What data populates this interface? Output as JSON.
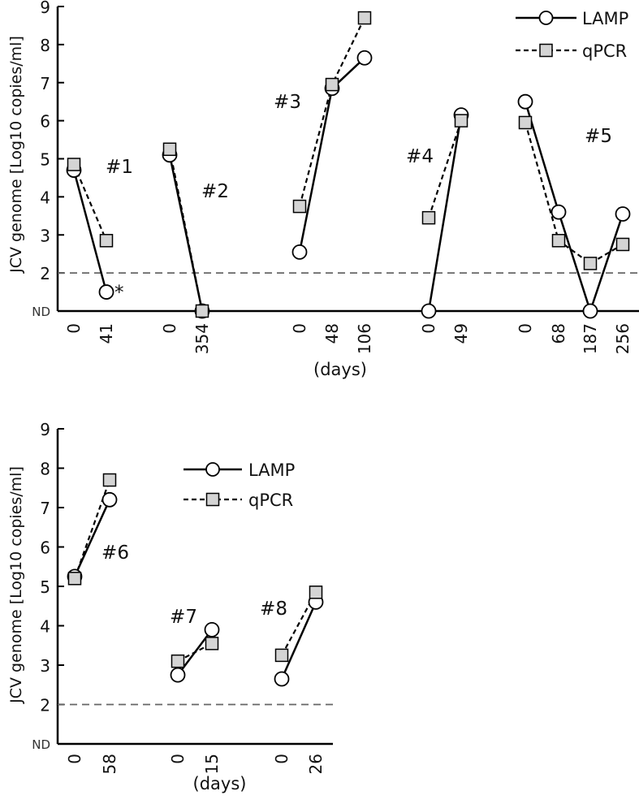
{
  "chart_data": [
    {
      "type": "line",
      "ylabel": "JCV genome [Log10 copies/ml]",
      "xlabel": "(days)",
      "yticks": [
        "ND",
        "2",
        "3",
        "4",
        "5",
        "6",
        "7",
        "8",
        "9"
      ],
      "ylim": [
        "ND",
        9
      ],
      "threshold": 2,
      "legend": {
        "placement": "top-right",
        "entries": [
          "LAMP",
          "qPCR"
        ]
      },
      "groups": [
        {
          "label": "#1",
          "days": [
            "0",
            "41"
          ],
          "LAMP": [
            4.7,
            1.5
          ],
          "qPCR": [
            4.85,
            2.85
          ],
          "annotations": [
            {
              "series": "LAMP",
              "index": 1,
              "text": "*"
            }
          ]
        },
        {
          "label": "#2",
          "days": [
            "0",
            "354"
          ],
          "LAMP": [
            5.1,
            "ND"
          ],
          "qPCR": [
            5.25,
            "ND"
          ]
        },
        {
          "label": "#3",
          "days": [
            "0",
            "48",
            "106"
          ],
          "LAMP": [
            2.55,
            6.85,
            7.65
          ],
          "qPCR": [
            3.75,
            6.95,
            8.7
          ]
        },
        {
          "label": "#4",
          "days": [
            "0",
            "49"
          ],
          "LAMP": [
            "ND",
            6.15
          ],
          "qPCR": [
            3.45,
            6.0
          ]
        },
        {
          "label": "#5",
          "days": [
            "0",
            "68",
            "187",
            "256"
          ],
          "LAMP": [
            6.5,
            3.6,
            "ND",
            3.55
          ],
          "qPCR": [
            5.95,
            2.85,
            2.25,
            2.75
          ]
        }
      ]
    },
    {
      "type": "line",
      "ylabel": "JCV genome [Log10 copies/ml]",
      "xlabel": "(days)",
      "yticks": [
        "ND",
        "2",
        "3",
        "4",
        "5",
        "6",
        "7",
        "8",
        "9"
      ],
      "ylim": [
        "ND",
        9
      ],
      "threshold": 2,
      "legend": {
        "placement": "top-center",
        "entries": [
          "LAMP",
          "qPCR"
        ]
      },
      "groups": [
        {
          "label": "#6",
          "days": [
            "0",
            "58"
          ],
          "LAMP": [
            5.25,
            7.2
          ],
          "qPCR": [
            5.2,
            7.7
          ]
        },
        {
          "label": "#7",
          "days": [
            "0",
            "15"
          ],
          "LAMP": [
            2.75,
            3.9
          ],
          "qPCR": [
            3.1,
            3.55
          ]
        },
        {
          "label": "#8",
          "days": [
            "0",
            "26"
          ],
          "LAMP": [
            2.65,
            4.6
          ],
          "qPCR": [
            3.25,
            4.85
          ]
        }
      ]
    }
  ],
  "colors": {
    "line": "#000000",
    "square_fill": "#d4d4d4",
    "circle_fill": "#ffffff",
    "threshold": "#666666"
  }
}
